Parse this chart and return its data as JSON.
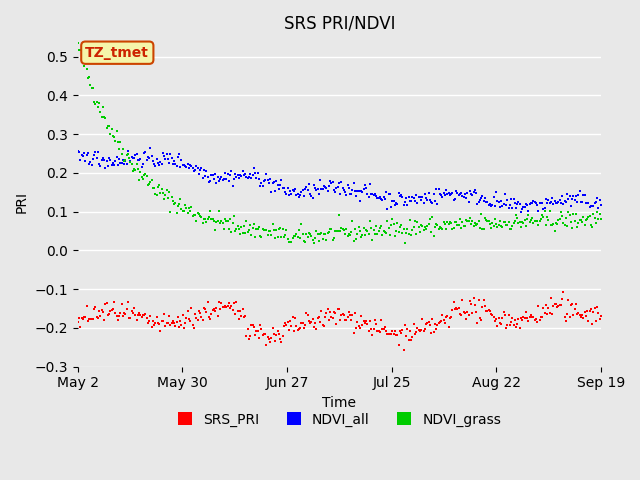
{
  "title": "SRS PRI/NDVI",
  "xlabel": "Time",
  "ylabel": "PRI",
  "ylim": [
    -0.3,
    0.55
  ],
  "yticks": [
    -0.3,
    -0.2,
    -0.1,
    0.0,
    0.1,
    0.2,
    0.3,
    0.4,
    0.5
  ],
  "xtick_labels": [
    "May 2",
    "May 30",
    "Jun 27",
    "Jul 25",
    "Aug 22",
    "Sep 19"
  ],
  "annotation_text": "TZ_tmet",
  "annotation_box_color": "#f5f5aa",
  "annotation_border_color": "#cc4400",
  "annotation_text_color": "#cc2200",
  "background_color": "#e8e8e8",
  "plot_bg_color": "#e8e8e8",
  "colors": {
    "SRS_PRI": "#ff0000",
    "NDVI_all": "#0000ff",
    "NDVI_grass": "#00cc00"
  },
  "legend_labels": [
    "SRS_PRI",
    "NDVI_all",
    "NDVI_grass"
  ],
  "marker_size": 2.5,
  "line_width": 1.0
}
